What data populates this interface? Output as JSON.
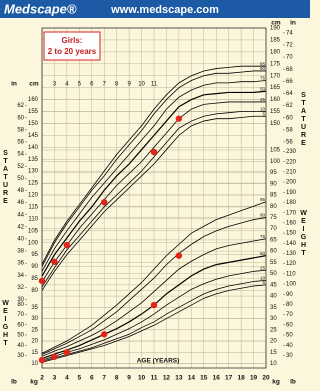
{
  "header": {
    "logo": "Medscape®",
    "url": "www.medscape.com"
  },
  "legend_box": {
    "title": "Girls:",
    "subtitle": "2 to 20 years"
  },
  "chart_data": [
    {
      "type": "line",
      "ylabel": "STATURE",
      "y_unit": "cm",
      "alt_unit": "in",
      "x": [
        2,
        3,
        4,
        5,
        6,
        7,
        8,
        9,
        10,
        11,
        12,
        13,
        14,
        15,
        16,
        17,
        18,
        19,
        20
      ],
      "xlim": [
        2,
        20
      ],
      "xticks_top": [
        3,
        4,
        5,
        6,
        7,
        8,
        9,
        10,
        11
      ],
      "ylim": [
        76,
        190
      ],
      "yticks": [
        80,
        85,
        90,
        95,
        100,
        105,
        110,
        115,
        120,
        125,
        130,
        135,
        140,
        145,
        150,
        155,
        160
      ],
      "yticks_right": [
        150,
        155,
        160,
        165,
        170,
        175,
        180,
        185,
        190
      ],
      "alt_ticks": [
        {
          "value": 76.2,
          "label": "30"
        },
        {
          "value": 81.28,
          "label": "32"
        },
        {
          "value": 86.36,
          "label": "34"
        },
        {
          "value": 91.44,
          "label": "36"
        },
        {
          "value": 96.52,
          "label": "38"
        },
        {
          "value": 101.6,
          "label": "40"
        },
        {
          "value": 106.68,
          "label": "42"
        },
        {
          "value": 111.76,
          "label": "44"
        },
        {
          "value": 116.84,
          "label": "46"
        },
        {
          "value": 121.92,
          "label": "48"
        },
        {
          "value": 127,
          "label": "50"
        },
        {
          "value": 132.08,
          "label": "52"
        },
        {
          "value": 137.16,
          "label": "54"
        },
        {
          "value": 142.24,
          "label": "56"
        },
        {
          "value": 147.32,
          "label": "58"
        },
        {
          "value": 152.4,
          "label": "60"
        },
        {
          "value": 157.48,
          "label": "62"
        }
      ],
      "alt_ticks_right": [
        {
          "value": 142.24,
          "label": "56"
        },
        {
          "value": 147.32,
          "label": "58"
        },
        {
          "value": 152.4,
          "label": "60"
        },
        {
          "value": 157.48,
          "label": "62"
        },
        {
          "value": 162.56,
          "label": "64"
        },
        {
          "value": 167.64,
          "label": "66"
        },
        {
          "value": 172.72,
          "label": "68"
        },
        {
          "value": 177.8,
          "label": "70"
        },
        {
          "value": 182.88,
          "label": "72"
        },
        {
          "value": 187.96,
          "label": "74"
        }
      ],
      "series": [
        {
          "name": "95",
          "color": "#000000",
          "values": [
            91,
            101,
            109,
            116,
            123,
            130,
            137,
            143,
            149,
            156,
            162,
            167,
            170,
            172,
            173,
            173.5,
            174,
            174,
            174
          ]
        },
        {
          "name": "90",
          "color": "#000000",
          "values": [
            90,
            100,
            108,
            115,
            122,
            128,
            135,
            141,
            147,
            154,
            160,
            165,
            168,
            170,
            171,
            171,
            171.5,
            172,
            172
          ]
        },
        {
          "name": "75",
          "color": "#000000",
          "values": [
            88,
            97.5,
            105,
            112,
            119,
            125,
            131,
            137,
            143,
            149,
            156,
            161,
            164,
            166,
            167,
            167,
            167.5,
            167.5,
            168
          ]
        },
        {
          "name": "50",
          "color": "#000000",
          "values": [
            86,
            95,
            102,
            109,
            115,
            122,
            128,
            133,
            139,
            145,
            151,
            157,
            160,
            162,
            162.5,
            163,
            163,
            163,
            163.5
          ]
        },
        {
          "name": "25",
          "color": "#000000",
          "values": [
            83.5,
            92,
            99,
            106,
            112,
            118,
            124,
            129,
            134,
            140,
            146,
            152,
            156,
            158,
            158.5,
            159,
            159,
            159,
            159
          ]
        },
        {
          "name": "10",
          "color": "#000000",
          "values": [
            81.5,
            89.5,
            97,
            103,
            109,
            115,
            120,
            125,
            130,
            136,
            142,
            148,
            151,
            153,
            154,
            154.5,
            155,
            155,
            155
          ]
        },
        {
          "name": "5",
          "color": "#000000",
          "values": [
            80,
            88,
            95,
            101,
            107,
            113,
            118,
            123,
            128,
            133,
            139,
            145,
            149,
            151,
            152,
            152,
            152.5,
            153,
            153
          ]
        }
      ],
      "measurements": {
        "x": [
          2,
          3,
          4,
          7,
          11,
          13
        ],
        "values": [
          84,
          92,
          99,
          117,
          138,
          152
        ],
        "color": "#e0261b"
      }
    },
    {
      "type": "line",
      "ylabel": "WEIGHT",
      "y_unit": "kg",
      "alt_unit": "lb",
      "xlabel": "AGE (YEARS)",
      "x": [
        2,
        3,
        4,
        5,
        6,
        7,
        8,
        9,
        10,
        11,
        12,
        13,
        14,
        15,
        16,
        17,
        18,
        19,
        20
      ],
      "xlim": [
        2,
        20
      ],
      "xticks": [
        2,
        3,
        4,
        5,
        6,
        7,
        8,
        9,
        10,
        11,
        12,
        13,
        14,
        15,
        16,
        17,
        18,
        19,
        20
      ],
      "ylim": [
        8,
        105
      ],
      "yticks": [
        10,
        15,
        20,
        25,
        30,
        35
      ],
      "yticks_right": [
        10,
        15,
        20,
        25,
        30,
        35,
        40,
        45,
        50,
        55,
        60,
        65,
        70,
        75,
        80,
        85,
        90,
        95,
        100,
        105
      ],
      "alt_ticks": [
        {
          "value": 13.61,
          "label": "30"
        },
        {
          "value": 18.14,
          "label": "40"
        },
        {
          "value": 22.68,
          "label": "50"
        },
        {
          "value": 27.22,
          "label": "60"
        },
        {
          "value": 31.75,
          "label": "70"
        },
        {
          "value": 36.29,
          "label": "80"
        }
      ],
      "alt_ticks_right": [
        {
          "value": 13.61,
          "label": "30"
        },
        {
          "value": 18.14,
          "label": "40"
        },
        {
          "value": 22.68,
          "label": "50"
        },
        {
          "value": 27.22,
          "label": "60"
        },
        {
          "value": 31.75,
          "label": "70"
        },
        {
          "value": 36.29,
          "label": "80"
        },
        {
          "value": 40.82,
          "label": "90"
        },
        {
          "value": 45.36,
          "label": "100"
        },
        {
          "value": 49.9,
          "label": "110"
        },
        {
          "value": 54.43,
          "label": "120"
        },
        {
          "value": 58.97,
          "label": "130"
        },
        {
          "value": 63.5,
          "label": "140"
        },
        {
          "value": 68.04,
          "label": "150"
        },
        {
          "value": 72.57,
          "label": "160"
        },
        {
          "value": 77.11,
          "label": "170"
        },
        {
          "value": 81.65,
          "label": "180"
        },
        {
          "value": 86.18,
          "label": "190"
        },
        {
          "value": 90.72,
          "label": "200"
        },
        {
          "value": 95.25,
          "label": "210"
        },
        {
          "value": 99.79,
          "label": "220"
        },
        {
          "value": 104.33,
          "label": "230"
        }
      ],
      "series": [
        {
          "name": "95",
          "color": "#000000",
          "values": [
            14.5,
            17.3,
            20,
            23.5,
            27,
            31.5,
            36,
            41,
            46,
            52,
            58,
            63,
            68,
            71,
            74,
            76,
            78,
            80,
            82
          ]
        },
        {
          "name": "90",
          "color": "#000000",
          "values": [
            14,
            16.5,
            19,
            22,
            25,
            29,
            33,
            38,
            43,
            48,
            54,
            59,
            63,
            66.5,
            69,
            71,
            72.5,
            74,
            75
          ]
        },
        {
          "name": "75",
          "color": "#000000",
          "values": [
            13.2,
            15.5,
            17.5,
            20,
            22.5,
            25.5,
            29,
            33,
            37,
            42,
            47,
            52,
            55.5,
            58.5,
            61,
            62.5,
            63.5,
            64.5,
            65.5
          ]
        },
        {
          "name": "50",
          "color": "#000000",
          "values": [
            12.2,
            14.2,
            16,
            18,
            20.5,
            23,
            25.5,
            28.5,
            32,
            36,
            41,
            45,
            49,
            52,
            54,
            55,
            56,
            57,
            58
          ]
        },
        {
          "name": "25",
          "color": "#000000",
          "values": [
            11.5,
            13.2,
            15,
            16.5,
            18.5,
            20.5,
            23,
            25.5,
            28.5,
            32,
            36,
            39.5,
            43,
            45.5,
            47.5,
            49,
            50,
            51,
            51.5
          ]
        },
        {
          "name": "10",
          "color": "#000000",
          "values": [
            11,
            12.5,
            14,
            15.5,
            17,
            19,
            21,
            23,
            26,
            28.5,
            32,
            35,
            38,
            41,
            43,
            44.5,
            45.5,
            46.5,
            47
          ]
        },
        {
          "name": "5",
          "color": "#000000",
          "values": [
            10.5,
            12,
            13.5,
            15,
            16.5,
            18,
            20,
            22,
            24.5,
            27,
            30,
            33,
            36,
            39,
            41,
            42.5,
            43.5,
            44.5,
            45
          ]
        }
      ],
      "measurements": {
        "x": [
          2,
          3,
          4,
          7,
          11,
          13
        ],
        "values": [
          11.5,
          13,
          15,
          23,
          36,
          58
        ],
        "color": "#e0261b"
      }
    }
  ]
}
